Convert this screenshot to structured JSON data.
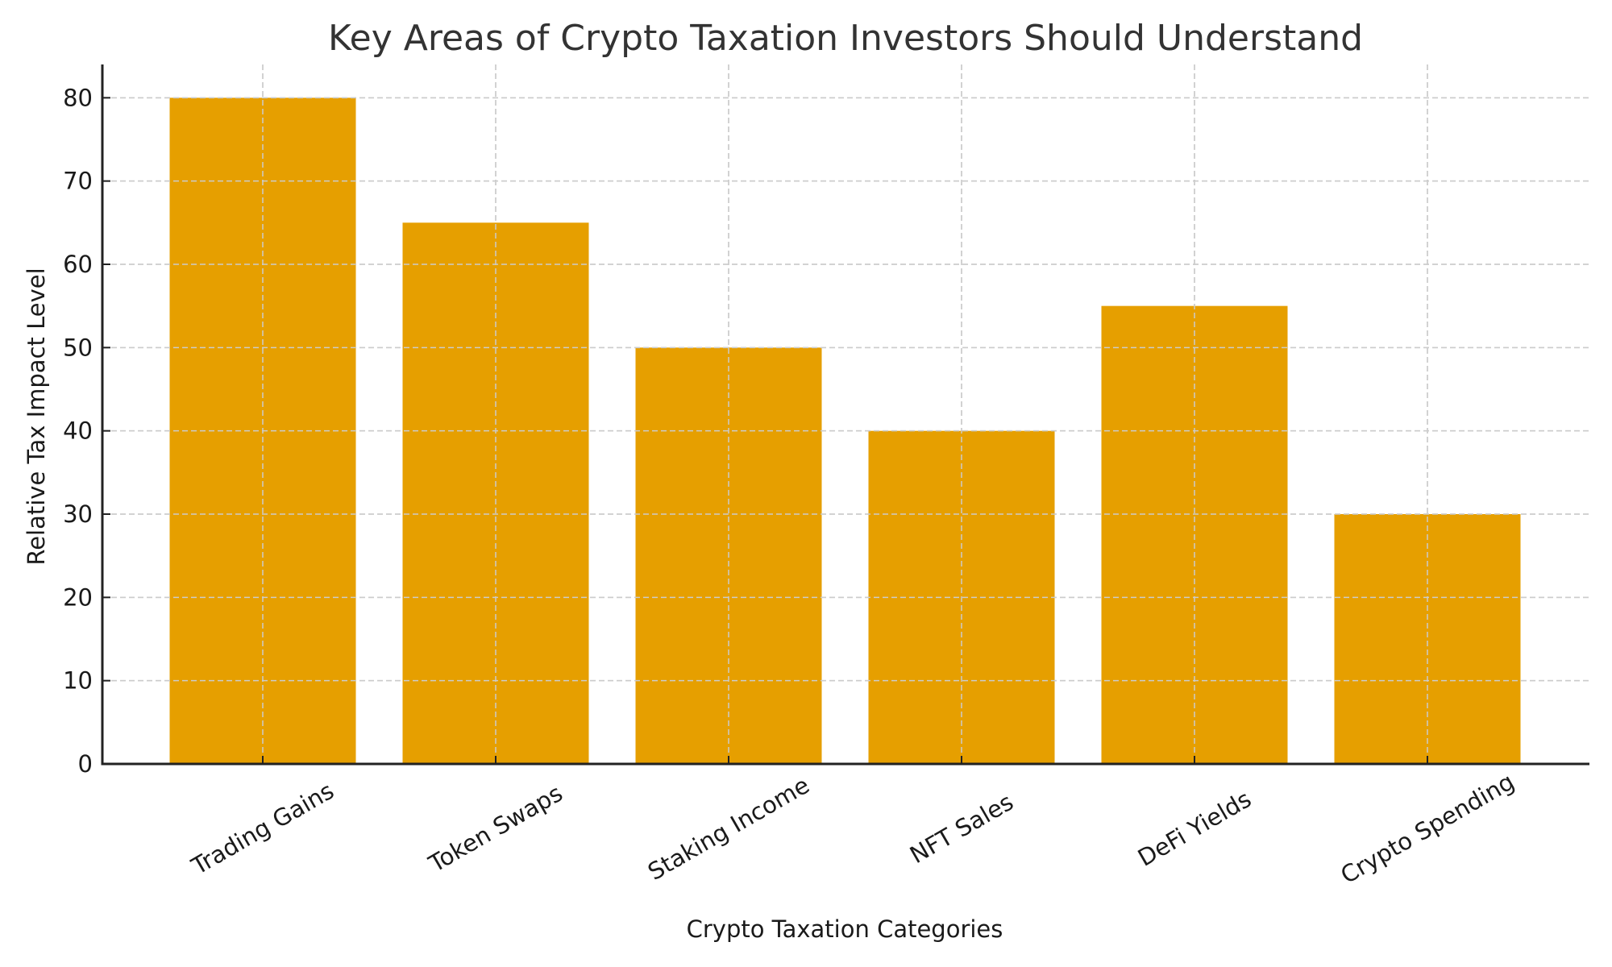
{
  "chart_data": {
    "type": "bar",
    "title": "Key Areas of Crypto Taxation Investors Should Understand",
    "xlabel": "Crypto Taxation Categories",
    "ylabel": "Relative Tax Impact Level",
    "categories": [
      "Trading Gains",
      "Token Swaps",
      "Staking Income",
      "NFT Sales",
      "DeFi Yields",
      "Crypto Spending"
    ],
    "values": [
      80,
      65,
      50,
      40,
      55,
      30
    ],
    "ylim": [
      0,
      84
    ],
    "yticks": [
      0,
      10,
      20,
      30,
      40,
      50,
      60,
      70,
      80
    ],
    "xtick_rotation": -30,
    "grid": true,
    "legend": null,
    "colors": {
      "bar": "#E69F00",
      "grid": "#cccccc",
      "axis": "#222222",
      "title": "#333333"
    }
  }
}
